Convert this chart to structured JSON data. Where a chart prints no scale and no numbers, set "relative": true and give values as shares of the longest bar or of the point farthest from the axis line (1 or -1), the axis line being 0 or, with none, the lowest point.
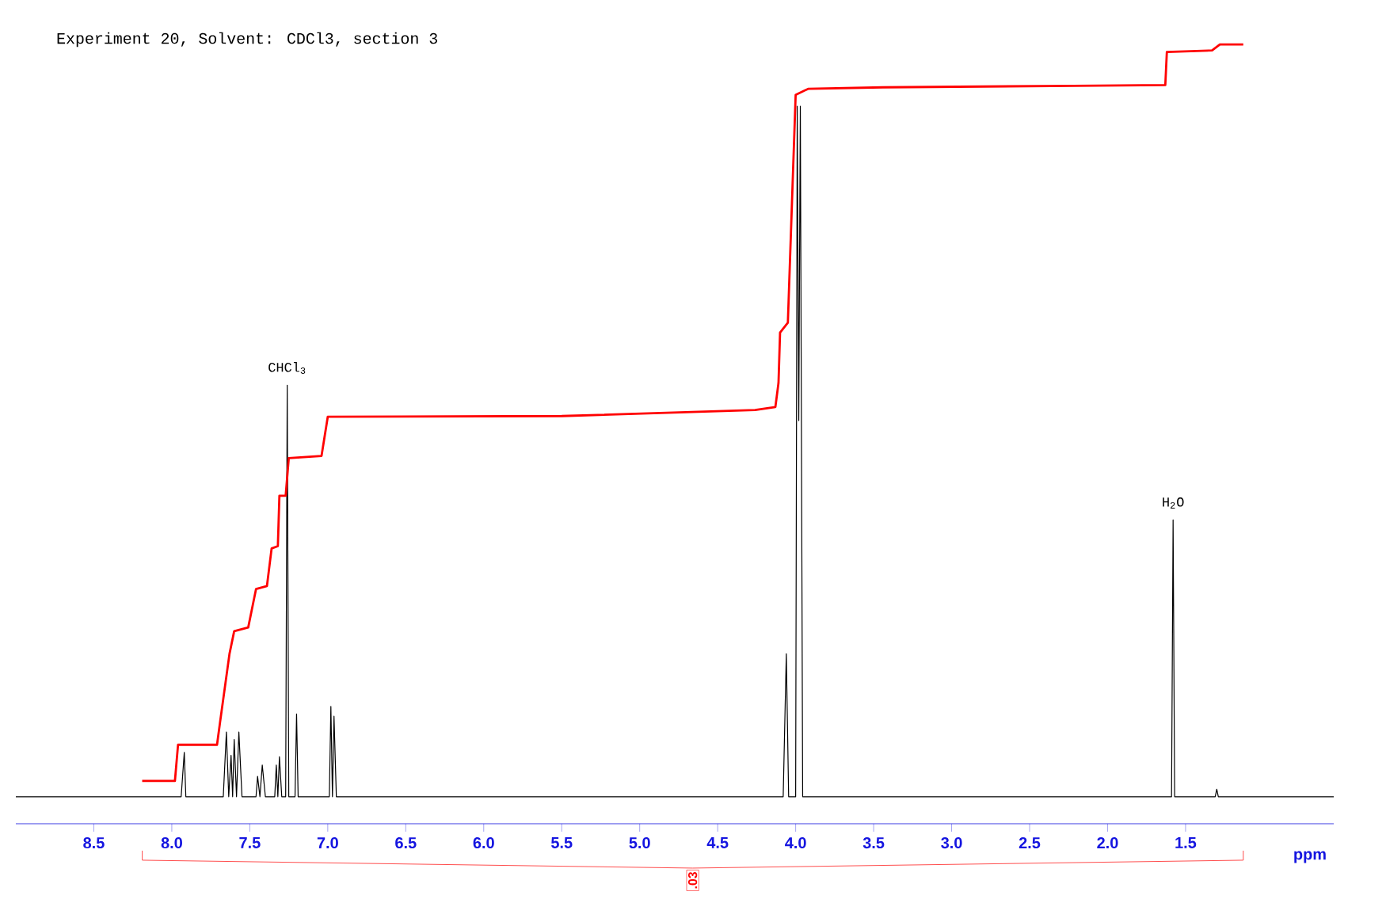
{
  "chart_data": {
    "type": "line",
    "title": "Experiment 20, Solvent: CDCl3, section 3",
    "xlabel": "ppm",
    "relative": true,
    "xlim": [
      9.0,
      0.55
    ],
    "xticks": [
      8.5,
      {
        "value": 8.0,
        "label": "8.0"
      },
      7.5,
      {
        "value": 7.0,
        "label": "7.0"
      },
      6.5,
      {
        "value": 6.0,
        "label": "6.0"
      },
      5.5,
      {
        "value": 5.0,
        "label": "5.0"
      },
      4.5,
      {
        "value": 4.0,
        "label": "4.0"
      },
      3.5,
      {
        "value": 3.0,
        "label": "3.0"
      },
      2.5,
      {
        "value": 2.0,
        "label": "2.0"
      },
      1.5
    ],
    "series": [
      {
        "color": "#000000",
        "x": [
          9.0,
          7.94,
          7.92,
          7.91,
          7.67,
          7.65,
          7.635,
          7.62,
          7.61,
          7.6,
          7.585,
          7.57,
          7.55,
          7.46,
          7.45,
          7.435,
          7.42,
          7.4,
          7.34,
          7.33,
          7.32,
          7.31,
          7.295,
          7.27,
          7.26,
          7.25,
          7.21,
          7.2,
          7.19,
          6.99,
          6.98,
          6.97,
          6.96,
          6.945,
          4.08,
          4.06,
          4.045,
          4.0,
          3.99,
          3.98,
          3.97,
          3.955,
          1.59,
          1.58,
          1.57,
          1.31,
          1.3,
          1.29,
          0.55
        ],
        "values": [
          0,
          0,
          0.059,
          0,
          0,
          0.086,
          0,
          0.055,
          0,
          0.076,
          0,
          0.086,
          0,
          0,
          0.027,
          0,
          0.042,
          0,
          0,
          0.042,
          0,
          0.053,
          0,
          0,
          0.547,
          0,
          0,
          0.11,
          0,
          0,
          0.12,
          0,
          0.107,
          0,
          0,
          0.19,
          0,
          0,
          0.918,
          0.5,
          0.918,
          0,
          0,
          0.368,
          0,
          0,
          0.01,
          0,
          0
        ]
      },
      {
        "color": "#ff0000",
        "x": [
          8.19,
          7.98,
          7.96,
          7.71,
          7.69,
          7.63,
          7.6,
          7.51,
          7.46,
          7.39,
          7.36,
          7.32,
          7.31,
          7.27,
          7.25,
          7.04,
          7.0,
          5.5,
          4.26,
          4.13,
          4.11,
          4.1,
          4.05,
          4.0,
          3.92,
          3.44,
          2.22,
          1.63,
          1.62,
          1.33,
          1.28,
          1.13
        ],
        "values": [
          0.021,
          0.021,
          0.069,
          0.069,
          0.1,
          0.19,
          0.22,
          0.225,
          0.276,
          0.28,
          0.33,
          0.333,
          0.4,
          0.4,
          0.45,
          0.453,
          0.505,
          0.506,
          0.514,
          0.518,
          0.55,
          0.617,
          0.63,
          0.933,
          0.941,
          0.943,
          0.945,
          0.946,
          0.99,
          0.992,
          1.0,
          1.0
        ]
      }
    ],
    "annotations": [
      {
        "text": "CHCl$_{3}$",
        "x": 7.26,
        "y": 0.547
      },
      {
        "text": "H$_{2}$O",
        "x": 1.58,
        "y": 0.368
      },
      ".03"
    ]
  }
}
